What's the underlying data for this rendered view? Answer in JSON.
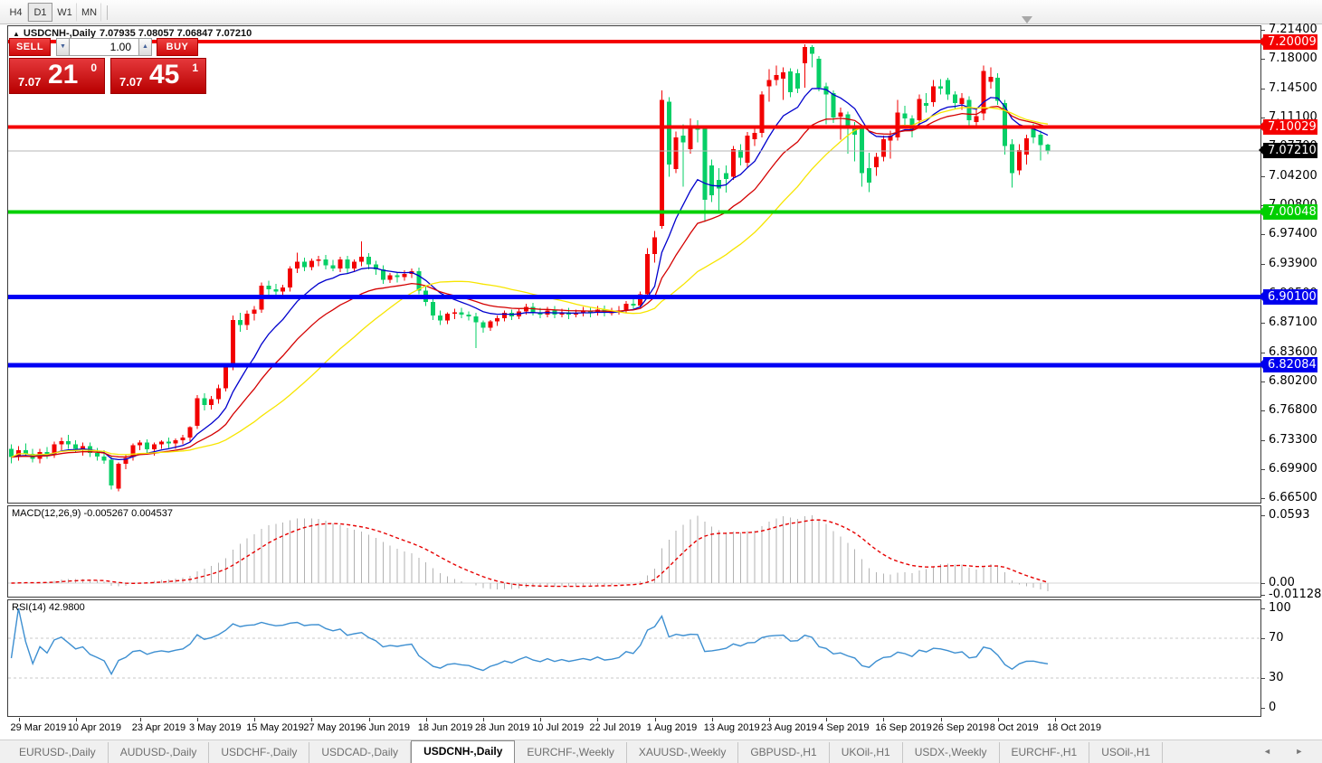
{
  "toolbar": {
    "timeframes": [
      {
        "label": "H4",
        "active": false
      },
      {
        "label": "D1",
        "active": true
      },
      {
        "label": "W1",
        "active": false
      },
      {
        "label": "MN",
        "active": false
      }
    ]
  },
  "header": {
    "symbol_label": "USDCNH-,Daily",
    "ohlc": "7.07935 7.08057 7.06847 7.07210"
  },
  "trade_panel": {
    "sell_label": "SELL",
    "buy_label": "BUY",
    "volume": "1.00",
    "sell_price": {
      "prefix": "7.07",
      "big": "21",
      "sup": "0"
    },
    "buy_price": {
      "prefix": "7.07",
      "big": "45",
      "sup": "1"
    }
  },
  "tabs": {
    "items": [
      {
        "label": "EURUSD-,Daily",
        "active": false
      },
      {
        "label": "AUDUSD-,Daily",
        "active": false
      },
      {
        "label": "USDCHF-,Daily",
        "active": false
      },
      {
        "label": "USDCAD-,Daily",
        "active": false
      },
      {
        "label": "USDCNH-,Daily",
        "active": true
      },
      {
        "label": "EURCHF-,Weekly",
        "active": false
      },
      {
        "label": "XAUUSD-,Weekly",
        "active": false
      },
      {
        "label": "GBPUSD-,H1",
        "active": false
      },
      {
        "label": "UKOil-,H1",
        "active": false
      },
      {
        "label": "USDX-,Weekly",
        "active": false
      },
      {
        "label": "EURCHF-,H1",
        "active": false
      },
      {
        "label": "USOil-,H1",
        "active": false
      }
    ],
    "scroll_arrows": "◄ ►"
  },
  "chart_data": {
    "type": "candlestick",
    "symbol": "USDCNH-",
    "timeframe": "Daily",
    "ohlc_display": {
      "open": "7.07935",
      "high": "7.08057",
      "low": "7.06847",
      "close": "7.07210"
    },
    "bull_color": "#f20000",
    "bear_color": "#06cf66",
    "y_domain": [
      6.665,
      7.214
    ],
    "y_axis_ticks": [
      "7.21400",
      "7.18000",
      "7.14500",
      "7.11100",
      "7.07700",
      "7.04200",
      "7.00800",
      "6.97400",
      "6.93900",
      "6.90500",
      "6.87100",
      "6.83600",
      "6.80200",
      "6.76800",
      "6.73300",
      "6.69900",
      "6.66500"
    ],
    "price_tags": [
      {
        "label": "7.20009",
        "price": 7.20009,
        "bg": "#f40000"
      },
      {
        "label": "7.10029",
        "price": 7.10029,
        "bg": "#f40000"
      },
      {
        "label": "7.07210",
        "price": 7.0721,
        "bg": "#000000"
      },
      {
        "label": "7.00048",
        "price": 7.00048,
        "bg": "#00cf00"
      },
      {
        "label": "6.90100",
        "price": 6.901,
        "bg": "#0000ee"
      },
      {
        "label": "6.82084",
        "price": 6.82084,
        "bg": "#0000ee"
      }
    ],
    "horizontal_lines": [
      {
        "price": 7.20009,
        "color": "#f40000",
        "width": 4
      },
      {
        "price": 7.10029,
        "color": "#f40000",
        "width": 4
      },
      {
        "price": 7.00048,
        "color": "#00d100",
        "width": 4
      },
      {
        "price": 6.901,
        "color": "#0000f4",
        "width": 5
      },
      {
        "price": 6.82084,
        "color": "#0000f4",
        "width": 5
      }
    ],
    "current_price": {
      "value": 7.0721,
      "line_color": "#b4b4b4"
    },
    "moving_averages": [
      {
        "period": 10,
        "method": "ema",
        "color": "#0000cd"
      },
      {
        "period": 20,
        "method": "ema",
        "color": "#d40000"
      },
      {
        "period": 30,
        "method": "sma",
        "color": "#f7e500"
      }
    ],
    "macd": {
      "label": "MACD(12,26,9) -0.005267 0.004537",
      "fast": 12,
      "slow": 26,
      "signal": 9,
      "axis_labels": [
        "0.0593",
        "0.00",
        "-0.01128"
      ],
      "histogram_color": "#b2b2b2",
      "signal_color": "#e60000"
    },
    "rsi": {
      "label": "RSI(14) 42.9800",
      "period": 14,
      "value": 42.98,
      "axis_labels": [
        "100",
        "70",
        "30",
        "0"
      ],
      "levels": [
        70,
        30
      ],
      "color": "#3d8fd1",
      "level_color": "#c8c8c8"
    },
    "x_axis_labels": [
      {
        "text": "29 Mar 2019",
        "i": 0
      },
      {
        "text": "10 Apr 2019",
        "i": 8
      },
      {
        "text": "23 Apr 2019",
        "i": 17
      },
      {
        "text": "3 May 2019",
        "i": 25
      },
      {
        "text": "15 May 2019",
        "i": 33
      },
      {
        "text": "27 May 2019",
        "i": 41
      },
      {
        "text": "6 Jun 2019",
        "i": 49
      },
      {
        "text": "18 Jun 2019",
        "i": 57
      },
      {
        "text": "28 Jun 2019",
        "i": 65
      },
      {
        "text": "10 Jul 2019",
        "i": 73
      },
      {
        "text": "22 Jul 2019",
        "i": 81
      },
      {
        "text": "1 Aug 2019",
        "i": 89
      },
      {
        "text": "13 Aug 2019",
        "i": 97
      },
      {
        "text": "23 Aug 2019",
        "i": 105
      },
      {
        "text": "4 Sep 2019",
        "i": 113
      },
      {
        "text": "16 Sep 2019",
        "i": 121
      },
      {
        "text": "26 Sep 2019",
        "i": 129
      },
      {
        "text": "8 Oct 2019",
        "i": 137
      },
      {
        "text": "18 Oct 2019",
        "i": 145
      }
    ],
    "candles": [
      [
        6.723,
        6.728,
        6.706,
        6.713
      ],
      [
        6.713,
        6.726,
        6.709,
        6.721
      ],
      [
        6.721,
        6.729,
        6.713,
        6.717
      ],
      [
        6.717,
        6.723,
        6.707,
        6.711
      ],
      [
        6.711,
        6.723,
        6.706,
        6.719
      ],
      [
        6.719,
        6.725,
        6.711,
        6.716
      ],
      [
        6.716,
        6.731,
        6.712,
        6.728
      ],
      [
        6.728,
        6.736,
        6.721,
        6.732
      ],
      [
        6.732,
        6.739,
        6.723,
        6.728
      ],
      [
        6.728,
        6.733,
        6.718,
        6.723
      ],
      [
        6.723,
        6.73,
        6.715,
        6.726
      ],
      [
        6.726,
        6.73,
        6.713,
        6.718
      ],
      [
        6.718,
        6.724,
        6.709,
        6.714
      ],
      [
        6.714,
        6.721,
        6.705,
        6.709
      ],
      [
        6.71,
        6.714,
        6.675,
        6.68
      ],
      [
        6.676,
        6.707,
        6.673,
        6.705
      ],
      [
        6.705,
        6.716,
        6.699,
        6.712
      ],
      [
        6.713,
        6.729,
        6.709,
        6.727
      ],
      [
        6.727,
        6.733,
        6.721,
        6.73
      ],
      [
        6.73,
        6.734,
        6.718,
        6.722
      ],
      [
        6.722,
        6.73,
        6.715,
        6.728
      ],
      [
        6.728,
        6.733,
        6.723,
        6.731
      ],
      [
        6.731,
        6.736,
        6.724,
        6.729
      ],
      [
        6.729,
        6.735,
        6.723,
        6.733
      ],
      [
        6.733,
        6.739,
        6.728,
        6.736
      ],
      [
        6.736,
        6.749,
        6.731,
        6.748
      ],
      [
        6.75,
        6.786,
        6.746,
        6.782
      ],
      [
        6.782,
        6.788,
        6.768,
        6.774
      ],
      [
        6.774,
        6.785,
        6.769,
        6.781
      ],
      [
        6.781,
        6.798,
        6.776,
        6.794
      ],
      [
        6.794,
        6.823,
        6.79,
        6.819
      ],
      [
        6.819,
        6.879,
        6.815,
        6.874
      ],
      [
        6.874,
        6.882,
        6.86,
        6.868
      ],
      [
        6.868,
        6.885,
        6.862,
        6.881
      ],
      [
        6.881,
        6.89,
        6.873,
        6.886
      ],
      [
        6.886,
        6.918,
        6.882,
        6.914
      ],
      [
        6.914,
        6.92,
        6.903,
        6.91
      ],
      [
        6.91,
        6.916,
        6.9,
        6.907
      ],
      [
        6.907,
        6.915,
        6.901,
        6.912
      ],
      [
        6.912,
        6.937,
        6.907,
        6.934
      ],
      [
        6.934,
        6.953,
        6.929,
        6.942
      ],
      [
        6.942,
        6.947,
        6.931,
        6.936
      ],
      [
        6.936,
        6.946,
        6.932,
        6.943
      ],
      [
        6.943,
        6.949,
        6.937,
        6.945
      ],
      [
        6.945,
        6.95,
        6.933,
        6.938
      ],
      [
        6.938,
        6.944,
        6.931,
        6.934
      ],
      [
        6.934,
        6.948,
        6.93,
        6.945
      ],
      [
        6.945,
        6.949,
        6.929,
        6.934
      ],
      [
        6.934,
        6.945,
        6.93,
        6.942
      ],
      [
        6.942,
        6.966,
        6.937,
        6.948
      ],
      [
        6.948,
        6.952,
        6.933,
        6.939
      ],
      [
        6.939,
        6.943,
        6.927,
        6.933
      ],
      [
        6.933,
        6.938,
        6.916,
        6.921
      ],
      [
        6.921,
        6.929,
        6.917,
        6.926
      ],
      [
        6.926,
        6.93,
        6.918,
        6.924
      ],
      [
        6.924,
        6.932,
        6.92,
        6.928
      ],
      [
        6.928,
        6.934,
        6.923,
        6.931
      ],
      [
        6.931,
        6.935,
        6.904,
        6.908
      ],
      [
        6.908,
        6.913,
        6.89,
        6.895
      ],
      [
        6.895,
        6.899,
        6.874,
        6.879
      ],
      [
        6.879,
        6.885,
        6.868,
        6.873
      ],
      [
        6.873,
        6.883,
        6.869,
        6.881
      ],
      [
        6.881,
        6.887,
        6.875,
        6.883
      ],
      [
        6.883,
        6.888,
        6.876,
        6.88
      ],
      [
        6.88,
        6.884,
        6.873,
        6.878
      ],
      [
        6.878,
        6.882,
        6.841,
        6.871
      ],
      [
        6.871,
        6.873,
        6.859,
        6.865
      ],
      [
        6.865,
        6.874,
        6.861,
        6.872
      ],
      [
        6.872,
        6.879,
        6.867,
        6.876
      ],
      [
        6.876,
        6.885,
        6.872,
        6.882
      ],
      [
        6.882,
        6.886,
        6.874,
        6.878
      ],
      [
        6.878,
        6.887,
        6.875,
        6.884
      ],
      [
        6.884,
        6.893,
        6.88,
        6.889
      ],
      [
        6.889,
        6.894,
        6.879,
        6.883
      ],
      [
        6.883,
        6.888,
        6.876,
        6.88
      ],
      [
        6.88,
        6.889,
        6.877,
        6.885
      ],
      [
        6.885,
        6.89,
        6.876,
        6.88
      ],
      [
        6.88,
        6.887,
        6.877,
        6.883
      ],
      [
        6.883,
        6.888,
        6.875,
        6.88
      ],
      [
        6.88,
        6.886,
        6.877,
        6.882
      ],
      [
        6.882,
        6.889,
        6.878,
        6.884
      ],
      [
        6.884,
        6.888,
        6.877,
        6.882
      ],
      [
        6.882,
        6.89,
        6.879,
        6.886
      ],
      [
        6.886,
        6.891,
        6.878,
        6.882
      ],
      [
        6.882,
        6.888,
        6.879,
        6.883
      ],
      [
        6.883,
        6.89,
        6.88,
        6.885
      ],
      [
        6.885,
        6.896,
        6.882,
        6.893
      ],
      [
        6.893,
        6.898,
        6.887,
        6.891
      ],
      [
        6.891,
        6.907,
        6.888,
        6.904
      ],
      [
        6.904,
        6.958,
        6.9,
        6.951
      ],
      [
        6.951,
        6.978,
        6.941,
        6.971
      ],
      [
        6.984,
        7.143,
        6.981,
        7.132
      ],
      [
        7.13,
        7.135,
        7.042,
        7.056
      ],
      [
        7.051,
        7.095,
        7.046,
        7.088
      ],
      [
        7.09,
        7.103,
        7.03,
        7.082
      ],
      [
        7.074,
        7.11,
        7.069,
        7.098
      ],
      [
        7.102,
        7.108,
        7.082,
        7.097
      ],
      [
        7.098,
        7.101,
        6.989,
        7.015
      ],
      [
        7.055,
        7.062,
        7.012,
        7.02
      ],
      [
        7.038,
        7.052,
        6.999,
        7.028
      ],
      [
        7.046,
        7.055,
        7.023,
        7.039
      ],
      [
        7.042,
        7.078,
        7.038,
        7.074
      ],
      [
        7.073,
        7.08,
        7.055,
        7.064
      ],
      [
        7.058,
        7.094,
        7.052,
        7.09
      ],
      [
        7.086,
        7.1,
        7.078,
        7.093
      ],
      [
        7.093,
        7.142,
        7.088,
        7.138
      ],
      [
        7.148,
        7.168,
        7.13,
        7.155
      ],
      [
        7.155,
        7.172,
        7.149,
        7.161
      ],
      [
        7.157,
        7.17,
        7.132,
        7.164
      ],
      [
        7.165,
        7.169,
        7.135,
        7.141
      ],
      [
        7.163,
        7.168,
        7.14,
        7.145
      ],
      [
        7.175,
        7.197,
        7.146,
        7.194
      ],
      [
        7.194,
        7.196,
        7.17,
        7.186
      ],
      [
        7.18,
        7.183,
        7.142,
        7.146
      ],
      [
        7.148,
        7.152,
        7.103,
        7.138
      ],
      [
        7.14,
        7.143,
        7.105,
        7.111
      ],
      [
        7.112,
        7.123,
        7.085,
        7.117
      ],
      [
        7.115,
        7.118,
        7.069,
        7.102
      ],
      [
        7.101,
        7.106,
        7.06,
        7.091
      ],
      [
        7.098,
        7.099,
        7.03,
        7.046
      ],
      [
        7.052,
        7.07,
        7.024,
        7.035
      ],
      [
        7.053,
        7.07,
        7.043,
        7.065
      ],
      [
        7.065,
        7.09,
        7.06,
        7.086
      ],
      [
        7.084,
        7.096,
        7.063,
        7.09
      ],
      [
        7.088,
        7.132,
        7.084,
        7.117
      ],
      [
        7.116,
        7.125,
        7.098,
        7.11
      ],
      [
        7.11,
        7.114,
        7.088,
        7.096
      ],
      [
        7.108,
        7.138,
        7.102,
        7.133
      ],
      [
        7.128,
        7.14,
        7.117,
        7.125
      ],
      [
        7.129,
        7.155,
        7.124,
        7.148
      ],
      [
        7.148,
        7.156,
        7.138,
        7.145
      ],
      [
        7.155,
        7.158,
        7.132,
        7.138
      ],
      [
        7.138,
        7.142,
        7.122,
        7.128
      ],
      [
        7.127,
        7.14,
        7.12,
        7.134
      ],
      [
        7.132,
        7.136,
        7.1,
        7.108
      ],
      [
        7.106,
        7.12,
        7.098,
        7.113
      ],
      [
        7.116,
        7.172,
        7.108,
        7.166
      ],
      [
        7.153,
        7.17,
        7.145,
        7.159
      ],
      [
        7.158,
        7.163,
        7.126,
        7.131
      ],
      [
        7.128,
        7.132,
        7.068,
        7.078
      ],
      [
        7.08,
        7.086,
        7.029,
        7.046
      ],
      [
        7.049,
        7.08,
        7.044,
        7.073
      ],
      [
        7.068,
        7.091,
        7.056,
        7.087
      ],
      [
        7.098,
        7.104,
        7.081,
        7.088
      ],
      [
        7.091,
        7.096,
        7.061,
        7.079
      ],
      [
        7.0794,
        7.0806,
        7.0685,
        7.0721
      ]
    ]
  }
}
